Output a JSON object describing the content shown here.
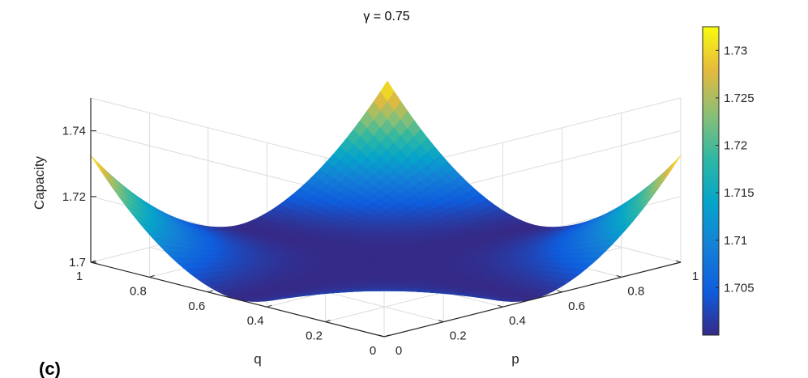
{
  "chart_data": {
    "type": "surface",
    "title": "γ = 0.75",
    "panel_label": "(c)",
    "xlabel": "p",
    "ylabel": "q",
    "zlabel": "Capacity",
    "x_ticks": [
      "0",
      "0.2",
      "0.4",
      "0.6",
      "0.8",
      "1"
    ],
    "y_ticks": [
      "0",
      "0.2",
      "0.4",
      "0.6",
      "0.8",
      "1"
    ],
    "z_ticks": [
      "1.7",
      "1.72",
      "1.74"
    ],
    "xlim": [
      0,
      1
    ],
    "ylim": [
      0,
      1
    ],
    "zlim": [
      1.7,
      1.75
    ],
    "grid": true,
    "colormap": "parula",
    "colorbar": {
      "range": [
        1.7,
        1.7325
      ],
      "ticks": [
        "1.705",
        "1.71",
        "1.715",
        "1.72",
        "1.725",
        "1.73"
      ],
      "tick_values": [
        1.705,
        1.71,
        1.715,
        1.72,
        1.725,
        1.73
      ]
    },
    "corner_values": [
      {
        "p": 0,
        "q": 0,
        "capacity": 1.7325
      },
      {
        "p": 1,
        "q": 0,
        "capacity": 1.7325
      },
      {
        "p": 0,
        "q": 1,
        "capacity": 1.7325
      },
      {
        "p": 1,
        "q": 1,
        "capacity": 1.7325
      }
    ],
    "center_value": {
      "p": 0.5,
      "q": 0.5,
      "capacity": 1.7
    }
  }
}
